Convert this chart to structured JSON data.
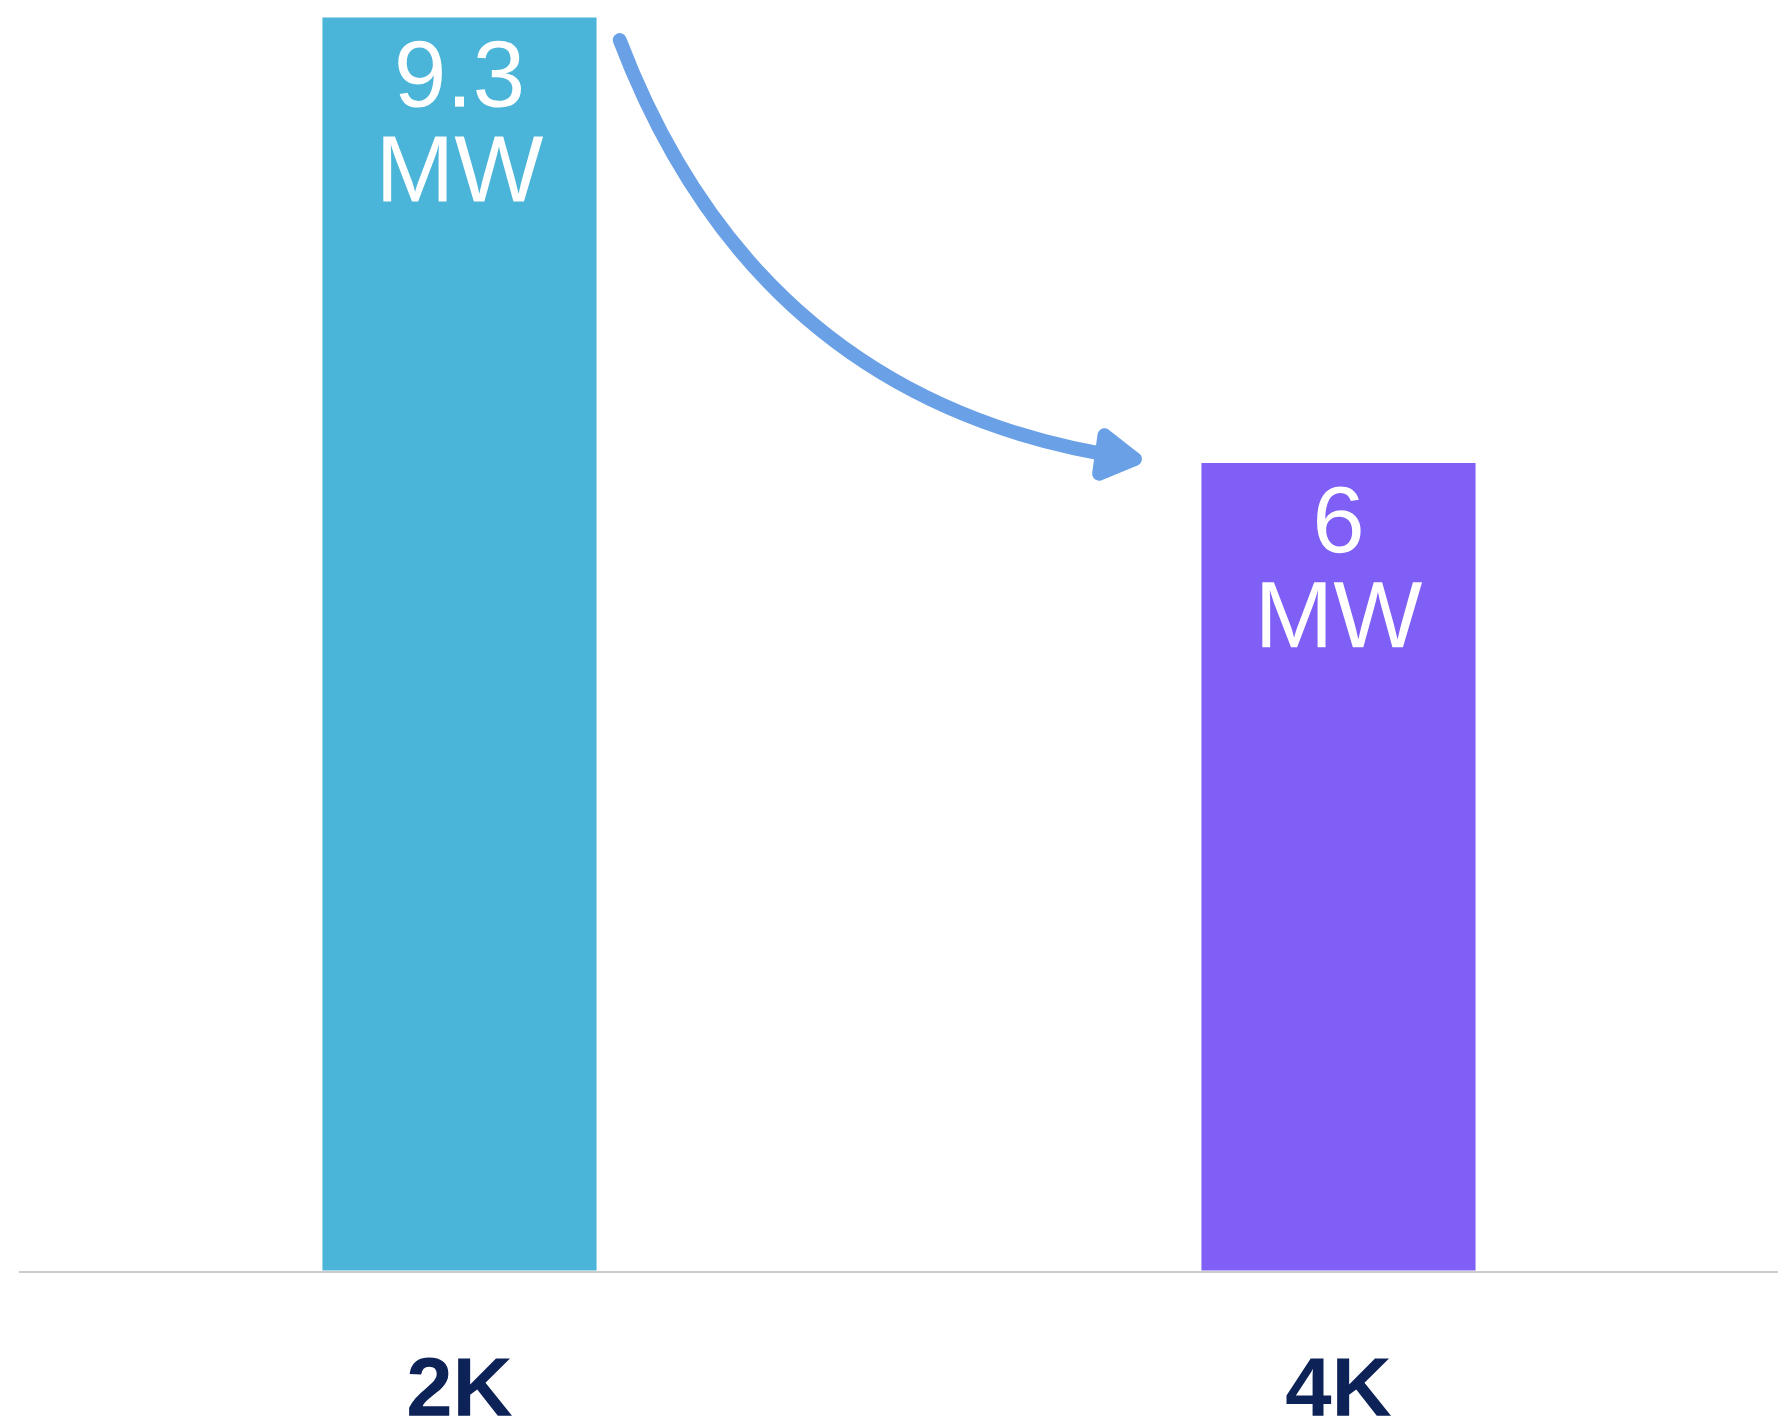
{
  "chart_data": {
    "type": "bar",
    "categories": [
      "2K",
      "4K"
    ],
    "values": [
      9.3,
      6
    ],
    "colors": [
      "#4ab5d9",
      "#7f5ff5"
    ],
    "value_labels": [
      "9.3\nMW",
      "6\nMW"
    ],
    "grid": false,
    "legend": false
  }
}
